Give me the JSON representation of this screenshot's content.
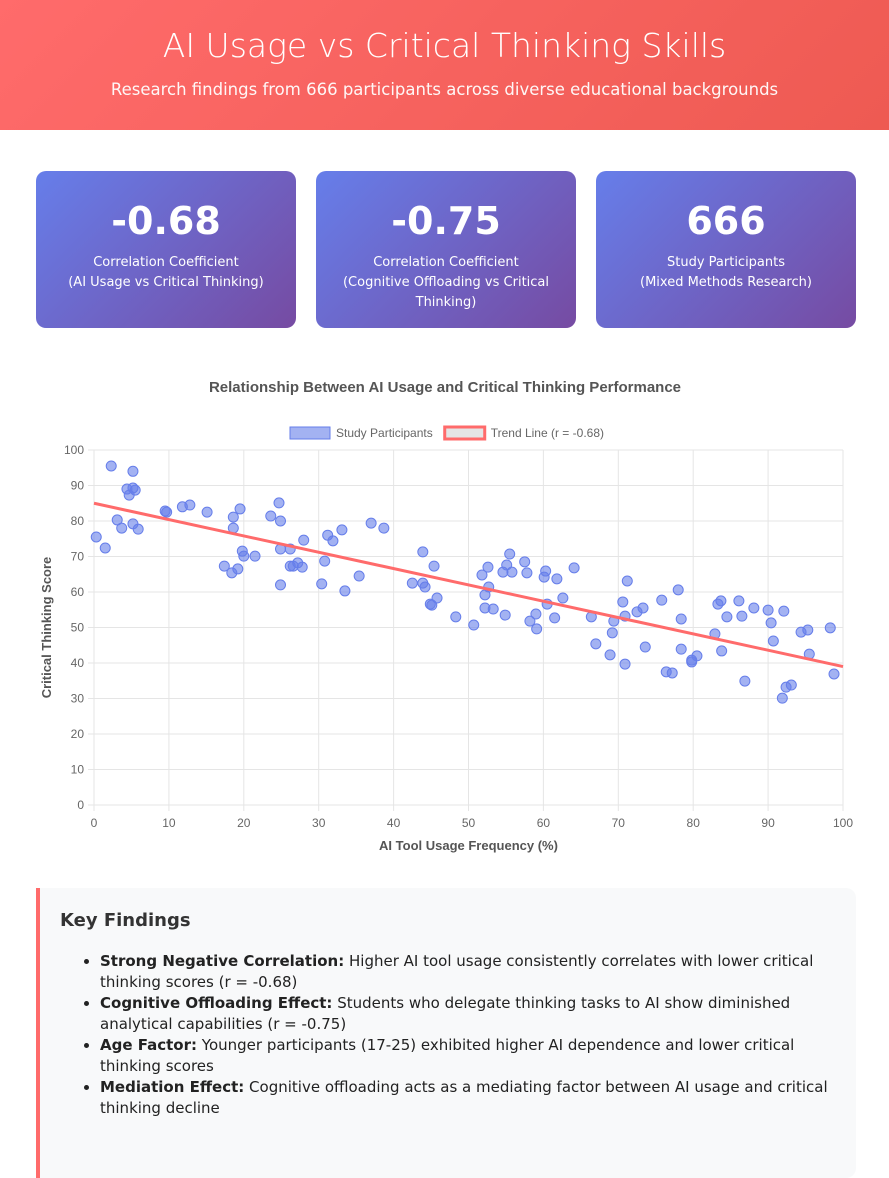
{
  "header": {
    "title": "AI Usage vs Critical Thinking Skills",
    "subtitle": "Research findings from 666 participants across diverse educational backgrounds"
  },
  "stats": [
    {
      "value": -0.68,
      "label": "Correlation Coefficient",
      "note": "(AI Usage vs Critical Thinking)"
    },
    {
      "value": -0.75,
      "label": "Correlation Coefficient",
      "note": "(Cognitive Offloading vs Critical Thinking)"
    },
    {
      "value": 666,
      "label": "Study Participants",
      "note": "(Mixed Methods Research)"
    }
  ],
  "chart_data": {
    "type": "scatter",
    "title": "Relationship Between AI Usage and Critical Thinking Performance",
    "x_label": "AI Tool Usage Frequency (%)",
    "y_label": "Critical Thinking Score",
    "xlim": [
      0,
      100
    ],
    "xticks": [
      0,
      10,
      20,
      30,
      40,
      50,
      60,
      70,
      80,
      90,
      100
    ],
    "ylim": [
      0,
      100
    ],
    "yticks": [
      0,
      10,
      20,
      30,
      40,
      50,
      60,
      70,
      80,
      90,
      100
    ],
    "grid": true,
    "legend": "top",
    "series": [
      {
        "name": "Study Participants",
        "color": "#667eea",
        "type": "scatter",
        "x": [
          0.3,
          1.5,
          2.3,
          3.1,
          3.7,
          4.4,
          4.7,
          5.2,
          5.5,
          5.2,
          5.2,
          5.9,
          9.5,
          9.7,
          11.8,
          12.8,
          15.1,
          17.4,
          18.4,
          18.6,
          18.6,
          19.2,
          19.5,
          19.8,
          20,
          21.5,
          23.6,
          24.7,
          24.9,
          24.9,
          24.9,
          26.2,
          26.2,
          26.6,
          27.2,
          27.8,
          28,
          30.4,
          30.8,
          31.2,
          31.9,
          33.1,
          33.5,
          35.4,
          37,
          38.7,
          42.5,
          43.9,
          43.9,
          44.2,
          44.9,
          45.1,
          45.4,
          45.8,
          48.3,
          50.7,
          51.8,
          52.2,
          52.2,
          52.6,
          52.7,
          53.3,
          54.6,
          54.9,
          55.1,
          55.5,
          55.8,
          57.5,
          57.8,
          58.2,
          59,
          59.1,
          60.1,
          60.3,
          60.5,
          61.5,
          61.8,
          62.6,
          64.1,
          66.4,
          67,
          68.9,
          69.2,
          69.4,
          70.6,
          70.9,
          70.9,
          71.2,
          72.5,
          73.3,
          73.6,
          75.8,
          76.4,
          77.2,
          78,
          78.4,
          78.4,
          79.8,
          79.8,
          80.5,
          82.9,
          83.3,
          83.7,
          83.8,
          84.5,
          86.1,
          86.5,
          86.9,
          88.1,
          90,
          90.4,
          90.7,
          91.9,
          92.1,
          92.4,
          93.1,
          94.4,
          95.3,
          95.5,
          98.3,
          98.8
        ],
        "values": [
          75.5,
          72.4,
          95.5,
          80.3,
          78,
          89,
          87.3,
          89.3,
          88.7,
          94,
          79.2,
          77.7,
          82.8,
          82.5,
          84,
          84.5,
          82.5,
          67.3,
          65.4,
          81.1,
          78,
          66.5,
          83.4,
          71.5,
          70.1,
          70.1,
          81.4,
          85.1,
          80,
          72.1,
          62,
          67.3,
          72.1,
          67.3,
          68.2,
          67,
          74.6,
          62.3,
          68.7,
          76,
          74.4,
          77.5,
          60.3,
          64.5,
          79.4,
          78,
          62.5,
          71.3,
          62.5,
          61.4,
          56.6,
          56.3,
          67.3,
          58.3,
          53,
          50.7,
          64.8,
          59.2,
          55.5,
          67,
          61.4,
          55.2,
          65.6,
          53.5,
          67.6,
          70.7,
          65.6,
          68.5,
          65.4,
          51.8,
          53.8,
          49.6,
          64.2,
          65.9,
          56.6,
          52.7,
          63.7,
          58.3,
          66.8,
          53,
          45.4,
          42.3,
          48.5,
          51.8,
          57.2,
          53.2,
          39.7,
          63.1,
          54.4,
          55.5,
          44.5,
          57.7,
          37.5,
          37.2,
          60.6,
          52.4,
          43.9,
          40.8,
          40.3,
          42,
          48.2,
          56.6,
          57.5,
          43.4,
          53,
          57.5,
          53.2,
          34.9,
          55.5,
          54.9,
          51.3,
          46.2,
          30.1,
          54.6,
          33.2,
          33.8,
          48.7,
          49.3,
          42.5,
          49.9,
          36.9
        ]
      },
      {
        "name": "Trend Line (r = -0.68)",
        "color": "#ff6b6b",
        "type": "line",
        "x": [
          0,
          100
        ],
        "values": [
          85,
          39
        ]
      }
    ]
  },
  "findings": {
    "title": "Key Findings",
    "items": [
      {
        "term": "Strong Negative Correlation:",
        "text": "Higher AI tool usage consistently correlates with lower critical thinking scores (r = -0.68)"
      },
      {
        "term": "Cognitive Offloading Effect:",
        "text": "Students who delegate thinking tasks to AI show diminished analytical capabilities (r = -0.75)"
      },
      {
        "term": "Age Factor:",
        "text": "Younger participants (17-25) exhibited higher AI dependence and lower critical thinking scores"
      },
      {
        "term": "Mediation Effect:",
        "text": "Cognitive offloading acts as a mediating factor between AI usage and critical thinking decline"
      }
    ]
  }
}
